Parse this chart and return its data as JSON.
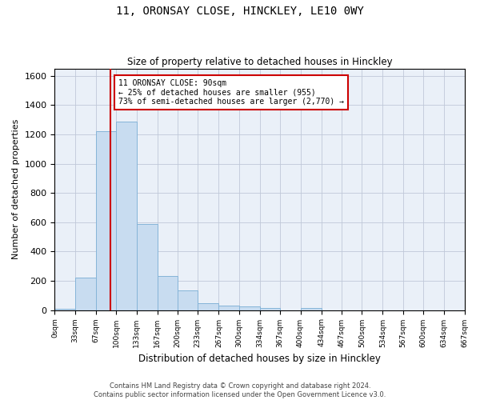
{
  "title": "11, ORONSAY CLOSE, HINCKLEY, LE10 0WY",
  "subtitle": "Size of property relative to detached houses in Hinckley",
  "xlabel": "Distribution of detached houses by size in Hinckley",
  "ylabel": "Number of detached properties",
  "footer_line1": "Contains HM Land Registry data © Crown copyright and database right 2024.",
  "footer_line2": "Contains public sector information licensed under the Open Government Licence v3.0.",
  "bin_edges": [
    0,
    33,
    67,
    100,
    133,
    167,
    200,
    233,
    267,
    300,
    334,
    367,
    400,
    434,
    467,
    500,
    534,
    567,
    600,
    634,
    667
  ],
  "bar_heights": [
    10,
    220,
    1220,
    1290,
    590,
    235,
    135,
    45,
    30,
    25,
    15,
    0,
    15,
    0,
    0,
    0,
    0,
    0,
    0,
    0
  ],
  "bar_color": "#c8dcf0",
  "bar_edge_color": "#85b4d8",
  "grid_color": "#c0c8d8",
  "bg_color": "#eaf0f8",
  "vline_x": 90,
  "vline_color": "#cc0000",
  "annotation_text": "11 ORONSAY CLOSE: 90sqm\n← 25% of detached houses are smaller (955)\n73% of semi-detached houses are larger (2,770) →",
  "annotation_box_color": "#cc0000",
  "ylim": [
    0,
    1650
  ],
  "yticks": [
    0,
    200,
    400,
    600,
    800,
    1000,
    1200,
    1400,
    1600
  ]
}
